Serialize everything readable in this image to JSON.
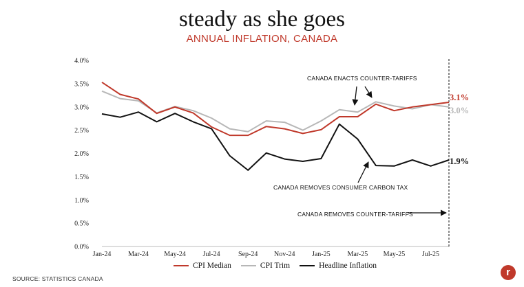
{
  "header": {
    "title": "steady as she goes",
    "subtitle": "ANNUAL INFLATION, CANADA"
  },
  "source": "SOURCE: STATISTICS CANADA",
  "logo_text": "r",
  "colors": {
    "median": "#c0392b",
    "trim": "#b7b7b7",
    "headline": "#111111"
  },
  "chart_data": {
    "type": "line",
    "title": "steady as she goes",
    "subtitle": "ANNUAL INFLATION, CANADA",
    "x": [
      "Jan-24",
      "Feb-24",
      "Mar-24",
      "Apr-24",
      "May-24",
      "Jun-24",
      "Jul-24",
      "Aug-24",
      "Sep-24",
      "Oct-24",
      "Nov-24",
      "Dec-24",
      "Jan-25",
      "Feb-25",
      "Mar-25",
      "Apr-25",
      "May-25",
      "Jun-25",
      "Jul-25",
      "Aug-25"
    ],
    "x_tick_labels": [
      "Jan-24",
      "Mar-24",
      "May-24",
      "Jul-24",
      "Sep-24",
      "Nov-24",
      "Jan-25",
      "Mar-25",
      "May-25",
      "Jul-25"
    ],
    "y_tick_labels": [
      "0.0%",
      "0.5%",
      "1.0%",
      "1.5%",
      "2.0%",
      "2.5%",
      "3.0%",
      "3.5%",
      "4.0%"
    ],
    "ylim": [
      0,
      4
    ],
    "series": [
      {
        "name": "CPI Median",
        "values": [
          3.53,
          3.27,
          3.17,
          2.86,
          3.0,
          2.87,
          2.57,
          2.39,
          2.39,
          2.58,
          2.53,
          2.43,
          2.51,
          2.79,
          2.79,
          3.06,
          2.92,
          3.0,
          3.05,
          3.1
        ],
        "end_label": "3.1%"
      },
      {
        "name": "CPI Trim",
        "values": [
          3.34,
          3.18,
          3.13,
          2.87,
          3.01,
          2.92,
          2.76,
          2.53,
          2.47,
          2.7,
          2.67,
          2.5,
          2.7,
          2.94,
          2.89,
          3.11,
          3.02,
          2.96,
          3.05,
          3.0
        ],
        "end_label": "3.0%"
      },
      {
        "name": "Headline Inflation",
        "values": [
          2.85,
          2.78,
          2.89,
          2.68,
          2.86,
          2.68,
          2.53,
          1.95,
          1.64,
          2.01,
          1.88,
          1.83,
          1.89,
          2.63,
          2.31,
          1.74,
          1.73,
          1.86,
          1.73,
          1.86
        ],
        "end_label": "1.9%"
      }
    ],
    "annotations": [
      {
        "text": "CANADA ENACTS COUNTER-TARIFFS"
      },
      {
        "text": "CANADA REMOVES CONSUMER CARBON TAX"
      },
      {
        "text": "CANADA REMOVES COUNTER-TARIFFS"
      }
    ],
    "legend_position": "bottom"
  }
}
